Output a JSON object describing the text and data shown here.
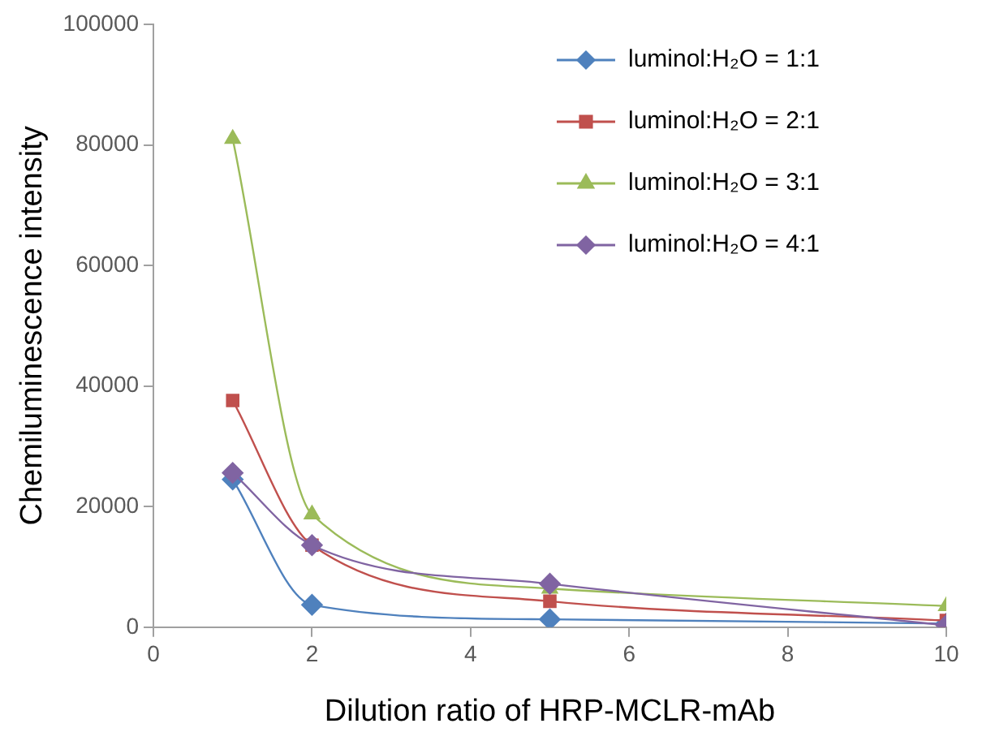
{
  "chart_data": {
    "type": "line",
    "xlabel": "Dilution ratio of HRP-MCLR-mAb",
    "ylabel": "Chemiluminescence intensity",
    "x": [
      1,
      2,
      5,
      10
    ],
    "series": [
      {
        "name": "luminol:H₂O = 1:1",
        "color": "#4f81bd",
        "marker": "diamond",
        "values": [
          24500,
          3700,
          1300,
          600
        ]
      },
      {
        "name": "luminol:H₂O = 2:1",
        "color": "#c0504d",
        "marker": "square",
        "values": [
          37600,
          13600,
          4300,
          1100
        ]
      },
      {
        "name": "luminol:H₂O = 3:1",
        "color": "#9bbb59",
        "marker": "triangle",
        "values": [
          81000,
          18700,
          6400,
          3500
        ]
      },
      {
        "name": "luminol:H₂O = 4:1",
        "color": "#8064a2",
        "marker": "diamond",
        "values": [
          25600,
          13600,
          7200,
          300
        ]
      }
    ],
    "xlim": [
      0,
      10
    ],
    "xticks": [
      0,
      2,
      4,
      6,
      8,
      10
    ],
    "ylim": [
      0,
      100000
    ],
    "yticks": [
      0,
      20000,
      40000,
      60000,
      80000,
      100000
    ],
    "grid": false,
    "legend": "top right",
    "line_style": "solid"
  }
}
